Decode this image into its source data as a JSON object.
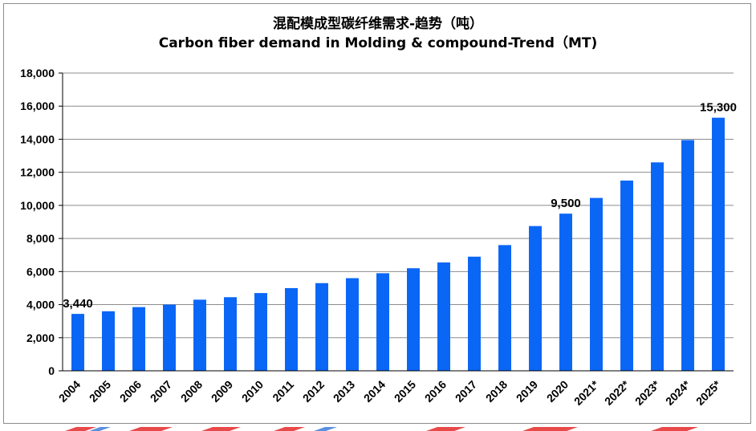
{
  "chart_data": {
    "type": "bar",
    "title": "混配模成型碳纤维需求-趋势（吨）",
    "subtitle": "Carbon fiber demand in Molding & compound-Trend（MT)",
    "xlabel": "",
    "ylabel": "",
    "ylim": [
      0,
      18000
    ],
    "yticks": [
      0,
      2000,
      4000,
      6000,
      8000,
      10000,
      12000,
      14000,
      16000,
      18000
    ],
    "ytick_labels": [
      "0",
      "2,000",
      "4,000",
      "6,000",
      "8,000",
      "10,000",
      "12,000",
      "14,000",
      "16,000",
      "18,000"
    ],
    "grid": true,
    "categories": [
      "2004",
      "2005",
      "2006",
      "2007",
      "2008",
      "2009",
      "2010",
      "2011",
      "2012",
      "2013",
      "2014",
      "2015",
      "2016",
      "2017",
      "2018",
      "2019",
      "2020",
      "2021*",
      "2022*",
      "2023*",
      "2024*",
      "2025*"
    ],
    "values": [
      3440,
      3600,
      3850,
      4000,
      4300,
      4450,
      4700,
      5000,
      5300,
      5600,
      5900,
      6200,
      6550,
      6900,
      7600,
      8750,
      9500,
      10450,
      11500,
      12600,
      13950,
      15300
    ],
    "data_labels": [
      {
        "index": 0,
        "text": "3,440"
      },
      {
        "index": 16,
        "text": "9,500"
      },
      {
        "index": 21,
        "text": "15,300"
      }
    ],
    "bar_color": "#0A66F5"
  }
}
